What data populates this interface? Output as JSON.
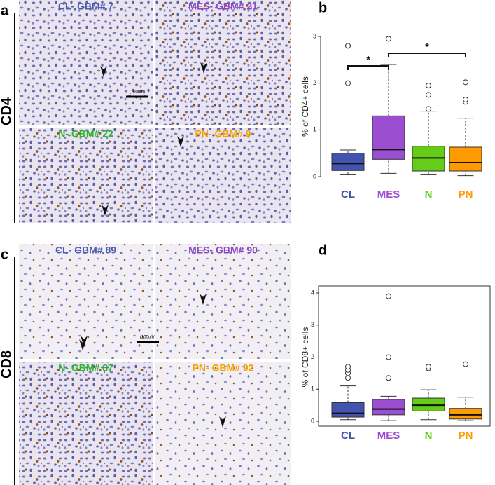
{
  "panels": [
    {
      "letter": "a",
      "marker": "CD4",
      "scale_bar": "(100um)",
      "tiles": [
        {
          "title": "CL- GBM# 7",
          "color": "#4a5bb0"
        },
        {
          "title": "MES- GBM# 21",
          "color": "#8e44c4"
        },
        {
          "title": "N- GBM# 22",
          "color": "#2ab52a"
        },
        {
          "title": "PN- GBM# 9",
          "color": "#f5a300"
        }
      ]
    },
    {
      "letter": "c",
      "marker": "CD8",
      "scale_bar": "(100um)",
      "tiles": [
        {
          "title": "CL- GBM# 89",
          "color": "#4a5bb0"
        },
        {
          "title": "MES- GBM# 90",
          "color": "#8e44c4"
        },
        {
          "title": "N- GBM# 87",
          "color": "#2ab52a"
        },
        {
          "title": "PN- GBM# 92",
          "color": "#f5a300"
        }
      ]
    }
  ],
  "chart_data": [
    {
      "type": "box",
      "letter": "b",
      "ylabel": "% of CD4+ cells",
      "categories": [
        "CL",
        "MES",
        "N",
        "PN"
      ],
      "colors": [
        "#4553b0",
        "#9b4fd0",
        "#66cc1a",
        "#ff9a00"
      ],
      "ylim": [
        0,
        3
      ],
      "yticks": [
        0,
        1,
        2,
        3
      ],
      "frame": false,
      "boxes": [
        {
          "low": 0.05,
          "q1": 0.13,
          "median": 0.28,
          "q3": 0.5,
          "high": 0.57,
          "outliers": [
            2.0,
            2.8
          ]
        },
        {
          "low": 0.07,
          "q1": 0.37,
          "median": 0.58,
          "q3": 1.3,
          "high": 2.4,
          "outliers": [
            2.95
          ]
        },
        {
          "low": 0.05,
          "q1": 0.12,
          "median": 0.4,
          "q3": 0.65,
          "high": 1.4,
          "outliers": [
            1.45,
            1.75,
            1.95
          ]
        },
        {
          "low": 0.02,
          "q1": 0.12,
          "median": 0.3,
          "q3": 0.63,
          "high": 1.25,
          "outliers": [
            1.6,
            1.65,
            2.02
          ]
        }
      ],
      "annotations": [
        {
          "text": "*",
          "between": [
            0,
            1
          ]
        },
        {
          "text": "*",
          "between": [
            1,
            3
          ]
        }
      ]
    },
    {
      "type": "box",
      "letter": "d",
      "ylabel": "% of CD8+ cells",
      "categories": [
        "CL",
        "MES",
        "N",
        "PN"
      ],
      "colors": [
        "#4553b0",
        "#9b4fd0",
        "#66cc1a",
        "#ff9a00"
      ],
      "ylim": [
        0,
        4
      ],
      "yticks": [
        0,
        1,
        2,
        3,
        4
      ],
      "frame": true,
      "boxes": [
        {
          "low": 0.05,
          "q1": 0.13,
          "median": 0.25,
          "q3": 0.58,
          "high": 1.1,
          "outliers": [
            1.35,
            1.5,
            1.6,
            1.7
          ]
        },
        {
          "low": 0.02,
          "q1": 0.2,
          "median": 0.38,
          "q3": 0.68,
          "high": 0.78,
          "outliers": [
            1.35,
            2.0,
            3.9
          ]
        },
        {
          "low": 0.05,
          "q1": 0.32,
          "median": 0.5,
          "q3": 0.72,
          "high": 0.98,
          "outliers": [
            1.65,
            1.7
          ]
        },
        {
          "low": 0.02,
          "q1": 0.07,
          "median": 0.2,
          "q3": 0.4,
          "high": 0.75,
          "outliers": [
            1.78
          ]
        }
      ],
      "annotations": []
    }
  ]
}
